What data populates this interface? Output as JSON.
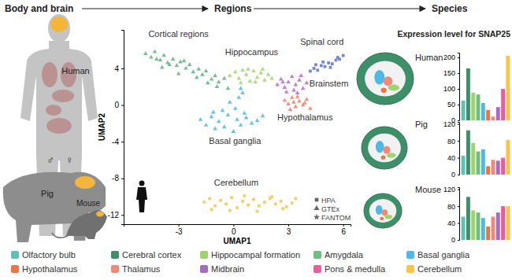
{
  "figure": {
    "steps": [
      "Body and brain",
      "Regions",
      "Species"
    ],
    "bar_title": "Expression level for SNAP25",
    "body_labels": [
      "Human",
      "Pig",
      "Mouse",
      "♂",
      "♀"
    ],
    "datasets": [
      {
        "name": "HPA",
        "marker": "square"
      },
      {
        "name": "GTEx",
        "marker": "triangle"
      },
      {
        "name": "FANTOM",
        "marker": "star"
      }
    ]
  },
  "chart_data": [
    {
      "type": "scatter",
      "x_label": "UMAP1",
      "y_label": "UMAP2",
      "xlim": [
        -6,
        6.4
      ],
      "ylim": [
        -13,
        8.2
      ],
      "xticks": [
        -3,
        0,
        3,
        6
      ],
      "yticks": [
        -12,
        -8,
        -4,
        0,
        4
      ],
      "grid": false,
      "series": [
        {
          "name": "Cortical regions",
          "color": "#5fb37f",
          "marker": "triangle",
          "x": [
            -4.8,
            -4.5,
            -4.3,
            -4.0,
            -3.8,
            -3.6,
            -3.3,
            -3.1,
            -2.9,
            -2.6,
            -2.4,
            -2.2,
            -1.9,
            -1.7,
            -1.5,
            -1.2,
            -1.0,
            -0.8,
            -0.5,
            -0.3,
            -3.9,
            -3.0,
            -2.0,
            -1.4,
            -4.2,
            -2.7,
            -0.9,
            -3.5
          ],
          "values": [
            5.6,
            5.2,
            5.8,
            4.9,
            5.4,
            4.6,
            5.0,
            4.3,
            4.7,
            4.0,
            4.4,
            3.6,
            3.9,
            3.3,
            3.7,
            2.8,
            3.2,
            2.5,
            2.9,
            1.8,
            4.1,
            3.4,
            3.0,
            2.4,
            5.0,
            4.8,
            2.0,
            4.4
          ]
        },
        {
          "name": "Hippocampus",
          "color": "#a3d46c",
          "marker": "triangle",
          "x": [
            -0.2,
            0.1,
            0.3,
            0.5,
            0.7,
            0.9,
            1.1,
            1.3,
            1.5,
            1.7,
            1.9,
            2.1,
            0.4,
            0.8,
            1.2,
            1.6
          ],
          "values": [
            3.2,
            3.6,
            2.9,
            3.8,
            3.3,
            2.6,
            3.7,
            3.0,
            3.5,
            2.7,
            3.3,
            2.9,
            2.4,
            3.9,
            2.5,
            3.9
          ]
        },
        {
          "name": "Spinal cord",
          "color": "#5a6fd8",
          "marker": "square",
          "x": [
            4.2,
            4.4,
            4.6,
            4.8,
            5.0,
            5.2,
            5.4,
            5.6,
            5.8,
            6.0,
            4.5,
            4.9,
            5.3,
            5.7
          ],
          "values": [
            3.7,
            4.0,
            3.8,
            4.3,
            4.2,
            4.6,
            4.5,
            4.9,
            5.0,
            5.4,
            4.4,
            4.7,
            4.1,
            5.2
          ]
        },
        {
          "name": "Brainstem",
          "color": "#b56cc6",
          "marker": "triangle",
          "x": [
            2.4,
            2.6,
            2.8,
            3.0,
            3.2,
            3.4,
            3.6,
            3.8,
            4.0,
            2.9,
            3.3,
            3.7,
            2.7,
            3.5
          ],
          "values": [
            2.2,
            2.8,
            1.9,
            2.5,
            3.1,
            2.2,
            2.7,
            1.8,
            2.4,
            1.4,
            1.6,
            3.2,
            2.5,
            1.3
          ]
        },
        {
          "name": "Hypothalamus",
          "color": "#ea8068",
          "marker": "triangle",
          "x": [
            2.8,
            3.0,
            3.2,
            3.4,
            3.6,
            3.8,
            4.0,
            4.2,
            3.1,
            3.5,
            3.9,
            3.3
          ],
          "values": [
            0.5,
            0.1,
            0.8,
            -0.2,
            0.4,
            0.0,
            0.6,
            -0.4,
            -0.5,
            0.9,
            0.2,
            0.3
          ]
        },
        {
          "name": "Basal ganglia",
          "color": "#4fb6e2",
          "marker": "triangle",
          "x": [
            -1.8,
            -1.5,
            -1.2,
            -1.0,
            -0.8,
            -0.5,
            -0.3,
            0.0,
            0.2,
            0.4,
            0.7,
            1.0,
            1.3,
            1.6,
            -1.1,
            -0.6,
            0.1,
            0.6,
            -0.2,
            0.3,
            0.5,
            0.4
          ],
          "values": [
            -1.6,
            -2.2,
            -1.3,
            -2.6,
            -1.8,
            -2.4,
            -1.1,
            -2.9,
            -1.6,
            -2.2,
            -1.4,
            -2.0,
            -1.7,
            -1.2,
            -0.8,
            -0.6,
            -0.4,
            -0.9,
            0.3,
            0.8,
            1.3,
            1.8
          ]
        },
        {
          "name": "Cerebellum",
          "color": "#f6c64b",
          "marker": "square",
          "x": [
            -1.6,
            -1.3,
            -1.0,
            -0.7,
            -0.4,
            -0.1,
            0.2,
            0.5,
            0.8,
            1.1,
            1.4,
            1.7,
            2.0,
            2.3,
            2.6,
            2.9,
            3.2,
            -1.2,
            -0.2,
            0.6,
            1.3,
            2.1,
            2.7,
            3.4
          ],
          "values": [
            -10.6,
            -10.2,
            -11.0,
            -10.4,
            -10.8,
            -10.1,
            -11.2,
            -10.5,
            -10.9,
            -10.3,
            -11.0,
            -10.6,
            -10.2,
            -10.8,
            -10.5,
            -11.1,
            -10.7,
            -11.4,
            -11.5,
            -9.9,
            -11.6,
            -10.0,
            -11.3,
            -10.2
          ]
        }
      ]
    },
    {
      "type": "bar",
      "title": "Human",
      "categories": [
        "Olfactory bulb",
        "Cerebral cortex",
        "Hippocampal formation",
        "Amygdala",
        "Basal ganglia",
        "Hypothalamus",
        "Thalamus",
        "Midbrain",
        "Pons & medulla",
        "Cerebellum"
      ],
      "colors": [
        "#5cc2b2",
        "#3d8f6a",
        "#9fd36d",
        "#6fbf7e",
        "#4fb9e6",
        "#e8764a",
        "#ef8a78",
        "#a66cc0",
        "#ea5c9b",
        "#f8c54a"
      ],
      "values": [
        63,
        165,
        88,
        82,
        55,
        33,
        12,
        42,
        100,
        205
      ],
      "ylim": [
        0,
        215
      ],
      "yticks": [
        0,
        50,
        100,
        150,
        200
      ],
      "tick_labels": "y",
      "grid": false
    },
    {
      "type": "bar",
      "title": "Pig",
      "categories": [
        "Olfactory bulb",
        "Cerebral cortex",
        "Hippocampal formation",
        "Amygdala",
        "Basal ganglia",
        "Hypothalamus",
        "Thalamus",
        "Midbrain",
        "Pons & medulla",
        "Cerebellum"
      ],
      "values": [
        45,
        105,
        75,
        55,
        60,
        20,
        35,
        33,
        40,
        82
      ],
      "ylim": [
        0,
        125
      ],
      "yticks": [
        0,
        40,
        80,
        120
      ],
      "tick_labels": "y",
      "grid": false
    },
    {
      "type": "bar",
      "title": "Mouse",
      "categories": [
        "Olfactory bulb",
        "Cerebral cortex",
        "Hippocampal formation",
        "Amygdala",
        "Basal ganglia",
        "Hypothalamus",
        "Thalamus",
        "Midbrain",
        "Pons & medulla",
        "Cerebellum"
      ],
      "values": [
        55,
        102,
        70,
        65,
        52,
        32,
        55,
        65,
        80,
        80
      ],
      "ylim": [
        0,
        125
      ],
      "yticks": [
        0,
        40,
        80,
        120
      ],
      "tick_labels": "y",
      "grid": false
    }
  ]
}
